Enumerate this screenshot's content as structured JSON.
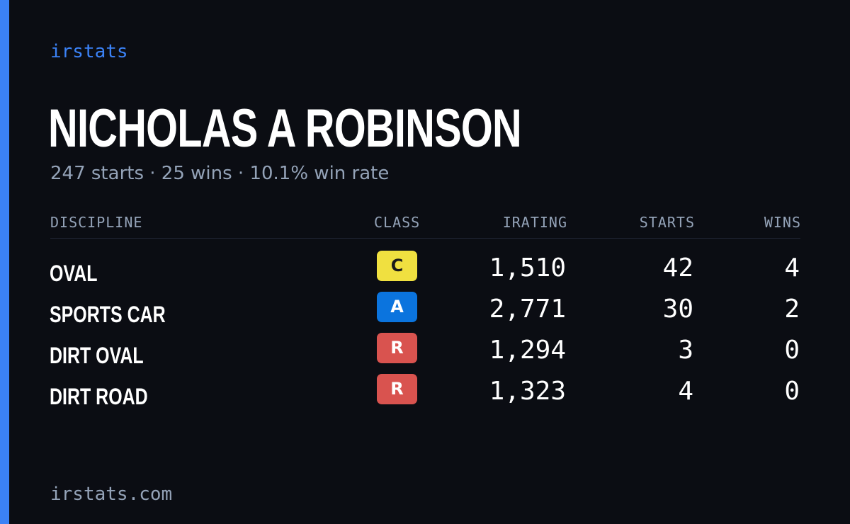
{
  "brand": "irstats",
  "driver": {
    "name": "NICHOLAS A ROBINSON",
    "summary": "247 starts · 25 wins · 10.1% win rate"
  },
  "table": {
    "headers": {
      "discipline": "DISCIPLINE",
      "class": "CLASS",
      "irating": "IRATING",
      "starts": "STARTS",
      "wins": "WINS"
    },
    "rows": [
      {
        "discipline": "OVAL",
        "class": "C",
        "class_bg": "#f0e040",
        "class_fg": "#1a1a1a",
        "irating": "1,510",
        "starts": "42",
        "wins": "4"
      },
      {
        "discipline": "SPORTS CAR",
        "class": "A",
        "class_bg": "#0b74de",
        "class_fg": "#ffffff",
        "irating": "2,771",
        "starts": "30",
        "wins": "2"
      },
      {
        "discipline": "DIRT OVAL",
        "class": "R",
        "class_bg": "#d9534f",
        "class_fg": "#ffffff",
        "irating": "1,294",
        "starts": "3",
        "wins": "0"
      },
      {
        "discipline": "DIRT ROAD",
        "class": "R",
        "class_bg": "#d9534f",
        "class_fg": "#ffffff",
        "irating": "1,323",
        "starts": "4",
        "wins": "0"
      }
    ]
  },
  "footer": "irstats.com",
  "colors": {
    "background": "#0b0d13",
    "accent": "#3b82f6",
    "muted": "#94a3b8"
  }
}
